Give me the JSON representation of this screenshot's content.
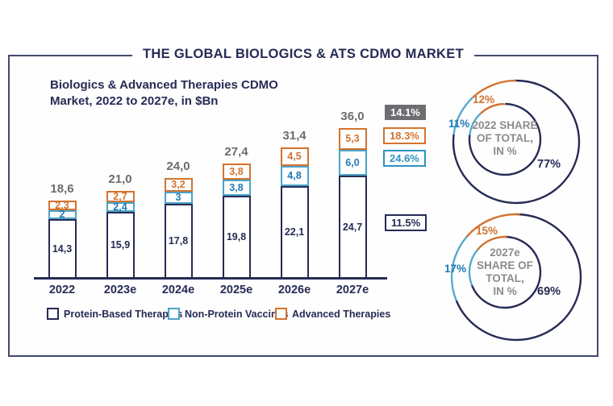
{
  "main_title": "THE GLOBAL BIOLOGICS & ATS CDMO MARKET",
  "colors": {
    "navy": "#262b54",
    "blue_border": "#4ba3c9",
    "blue_text": "#1e79b6",
    "orange": "#d3732e",
    "gray": "#6d6e71",
    "center_gray": "#8a8b8d"
  },
  "chart_data": [
    {
      "type": "bar",
      "title": "Biologics & Advanced Therapies CDMO Market, 2022 to 2027e, in $Bn",
      "unit": "$Bn",
      "categories": [
        "2022",
        "2023e",
        "2024e",
        "2025e",
        "2026e",
        "2027e"
      ],
      "series": [
        {
          "name": "Protein-Based Therapies",
          "color_key": "navy",
          "values": [
            14.3,
            15.9,
            17.8,
            19.8,
            22.1,
            24.7
          ],
          "values_display": [
            "14,3",
            "15,9",
            "17,8",
            "19,8",
            "22,1",
            "24,7"
          ]
        },
        {
          "name": "Non-Protein Vaccines",
          "color_key": "blue",
          "values": [
            2,
            2.4,
            3,
            3.8,
            4.8,
            6.0
          ],
          "values_display": [
            "2",
            "2,4",
            "3",
            "3,8",
            "4,8",
            "6,0"
          ]
        },
        {
          "name": "Advanced Therapies",
          "color_key": "orange",
          "values": [
            2.3,
            2.7,
            3.2,
            3.8,
            4.5,
            5.3
          ],
          "values_display": [
            "2,3",
            "2,7",
            "3,2",
            "3,8",
            "4,5",
            "5,3"
          ]
        }
      ],
      "totals": [
        18.6,
        21.0,
        24.0,
        27.4,
        31.4,
        36.0
      ],
      "totals_display": [
        "18,6",
        "21,0",
        "24,0",
        "27,4",
        "31,4",
        "36,0"
      ],
      "ylim": [
        0,
        36
      ],
      "grid": false,
      "cagr_badges": [
        {
          "label": "14.1%",
          "style": "gray-filled"
        },
        {
          "label": "18.3%",
          "style": "orange"
        },
        {
          "label": "24.6%",
          "style": "blue"
        },
        {
          "label": "11.5%",
          "style": "navy"
        }
      ]
    },
    {
      "type": "donut",
      "center_label": [
        "2022 SHARE",
        "OF TOTAL,",
        "IN %"
      ],
      "segments": [
        {
          "name": "Protein-Based Therapies",
          "value": 77,
          "display": "77%",
          "color_key": "navy"
        },
        {
          "name": "Non-Protein Vaccines",
          "value": 11,
          "display": "11%",
          "color_key": "blue"
        },
        {
          "name": "Advanced Therapies",
          "value": 12,
          "display": "12%",
          "color_key": "orange"
        }
      ]
    },
    {
      "type": "donut",
      "center_label": [
        "2027e",
        "SHARE OF",
        "TOTAL,",
        "IN %"
      ],
      "segments": [
        {
          "name": "Protein-Based Therapies",
          "value": 69,
          "display": "69%",
          "color_key": "navy"
        },
        {
          "name": "Non-Protein Vaccines",
          "value": 17,
          "display": "17%",
          "color_key": "blue"
        },
        {
          "name": "Advanced Therapies",
          "value": 15,
          "display": "15%",
          "color_key": "orange"
        }
      ]
    }
  ]
}
